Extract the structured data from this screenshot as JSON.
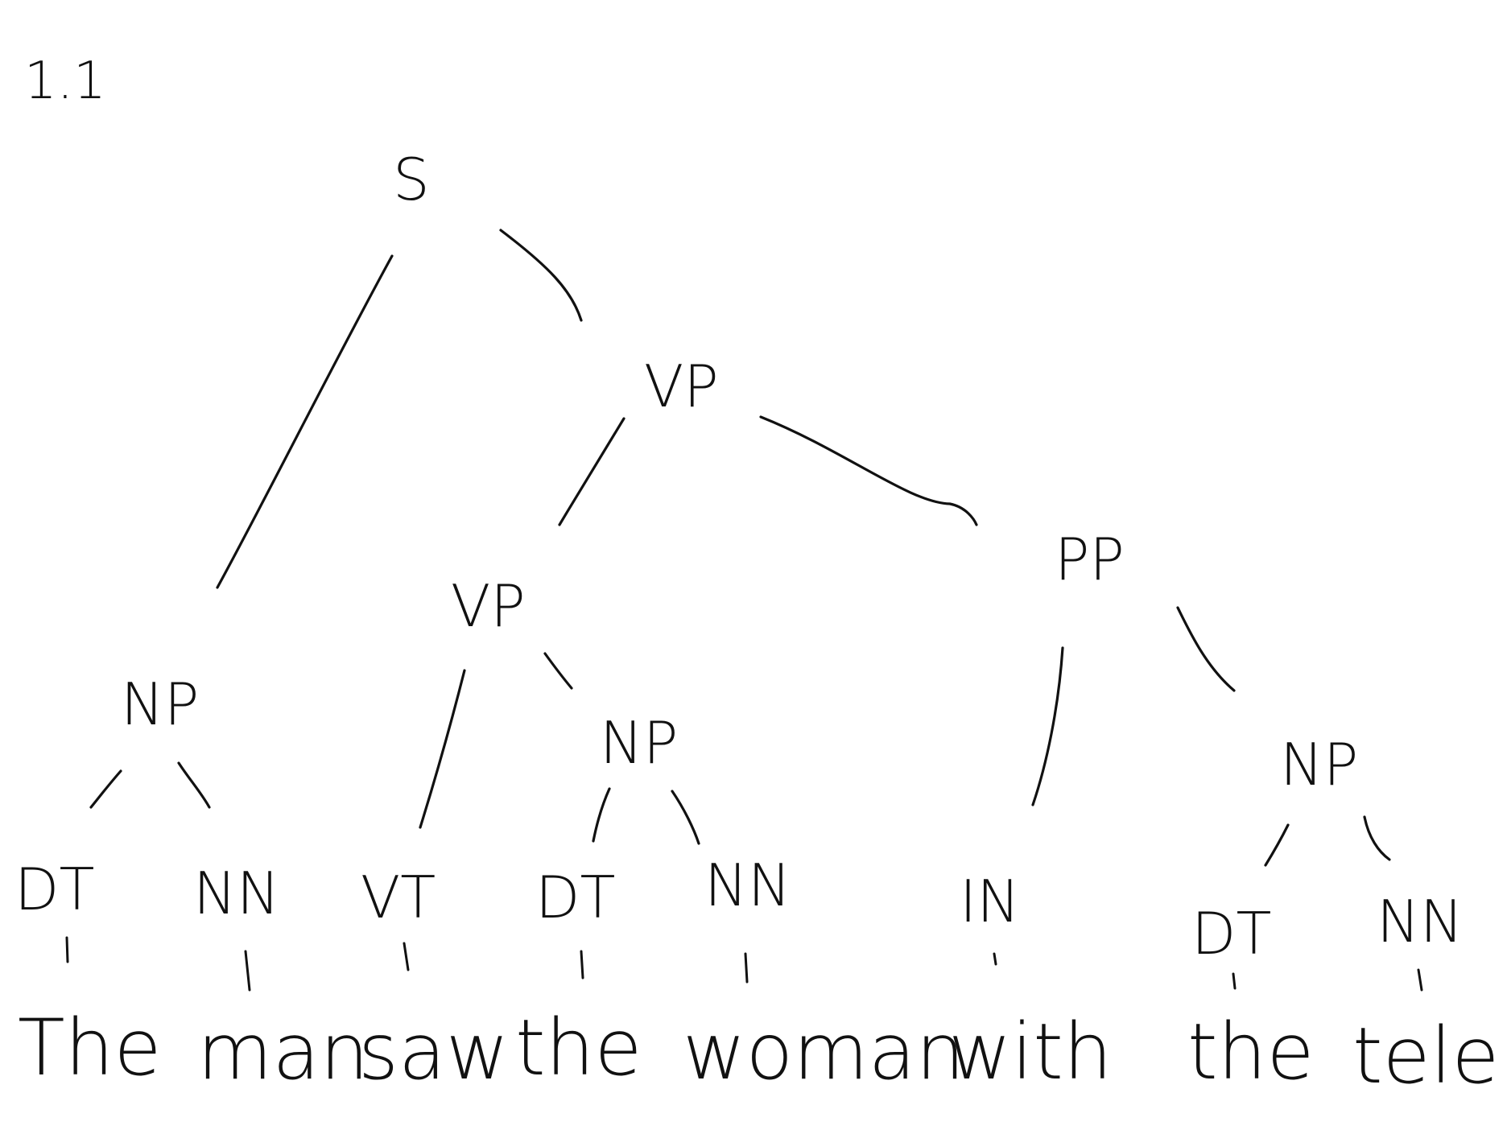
{
  "problem_number": "1.1",
  "tree": {
    "S": "S",
    "VP_top": "VP",
    "NP_subject": "NP",
    "VP_inner": "VP",
    "PP": "PP",
    "NP_object": "NP",
    "NP_pp": "NP"
  },
  "pos_tags": [
    "DT",
    "NN",
    "VT",
    "DT",
    "NN",
    "IN",
    "DT",
    "NN"
  ],
  "words": [
    "The",
    "man",
    "saw",
    "the",
    "woman",
    "with",
    "the",
    "tele"
  ]
}
